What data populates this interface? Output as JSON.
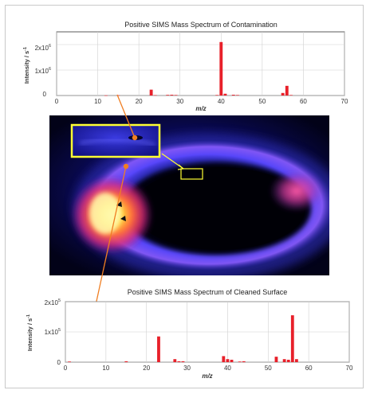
{
  "top_chart": {
    "title": "Positive SIMS Mass Spectrum of Contamination",
    "ylabel": "Intensity / s",
    "ylabel_sup": "-1",
    "xlabel": "m/z",
    "ytick_base": "1x10",
    "ytick_base2": "2x10",
    "ytick_exp": "6",
    "zero": "0"
  },
  "bottom_chart": {
    "title": "Positive SIMS Mass Spectrum of Cleaned Surface",
    "ylabel": "Intensity / s",
    "ylabel_sup": "-1",
    "xlabel": "m/z",
    "ytick_base": "1x10",
    "ytick_base2": "2x10",
    "ytick_exp": "5",
    "zero": "0"
  },
  "chart_data": [
    {
      "type": "bar",
      "title": "Positive SIMS Mass Spectrum of Contamination",
      "xlabel": "m/z",
      "ylabel": "Intensity / s-1",
      "xlim": [
        0,
        70
      ],
      "ylim": [
        0,
        2500000
      ],
      "xticks": [
        0,
        10,
        20,
        30,
        40,
        50,
        60,
        70
      ],
      "yticks": [
        0,
        1000000,
        2000000
      ],
      "grid": true,
      "color": "#e8202a",
      "x": [
        12,
        15,
        23,
        24,
        27,
        28,
        29,
        39,
        40,
        41,
        43,
        44,
        55,
        56,
        57
      ],
      "values": [
        6000,
        10000,
        230000,
        15000,
        25000,
        30000,
        20000,
        20000,
        2100000,
        70000,
        30000,
        20000,
        100000,
        380000,
        20000
      ]
    },
    {
      "type": "bar",
      "title": "Positive SIMS Mass Spectrum of Cleaned Surface",
      "xlabel": "m/z",
      "ylabel": "Intensity / s-1",
      "xlim": [
        0,
        70
      ],
      "ylim": [
        0,
        200000
      ],
      "xticks": [
        0,
        10,
        20,
        30,
        40,
        50,
        60,
        70
      ],
      "yticks": [
        0,
        100000,
        200000
      ],
      "grid": true,
      "color": "#e8202a",
      "x": [
        1,
        15,
        23,
        27,
        28,
        29,
        39,
        40,
        41,
        43,
        44,
        52,
        54,
        55,
        56,
        57
      ],
      "values": [
        2000,
        3000,
        85000,
        10000,
        3000,
        3000,
        20000,
        10000,
        8000,
        2000,
        3000,
        18000,
        10000,
        8000,
        155000,
        10000
      ]
    }
  ],
  "colors": {
    "bar": "#e8202a",
    "callout_box": "#ffff33",
    "leader_line": "#f07e22"
  }
}
